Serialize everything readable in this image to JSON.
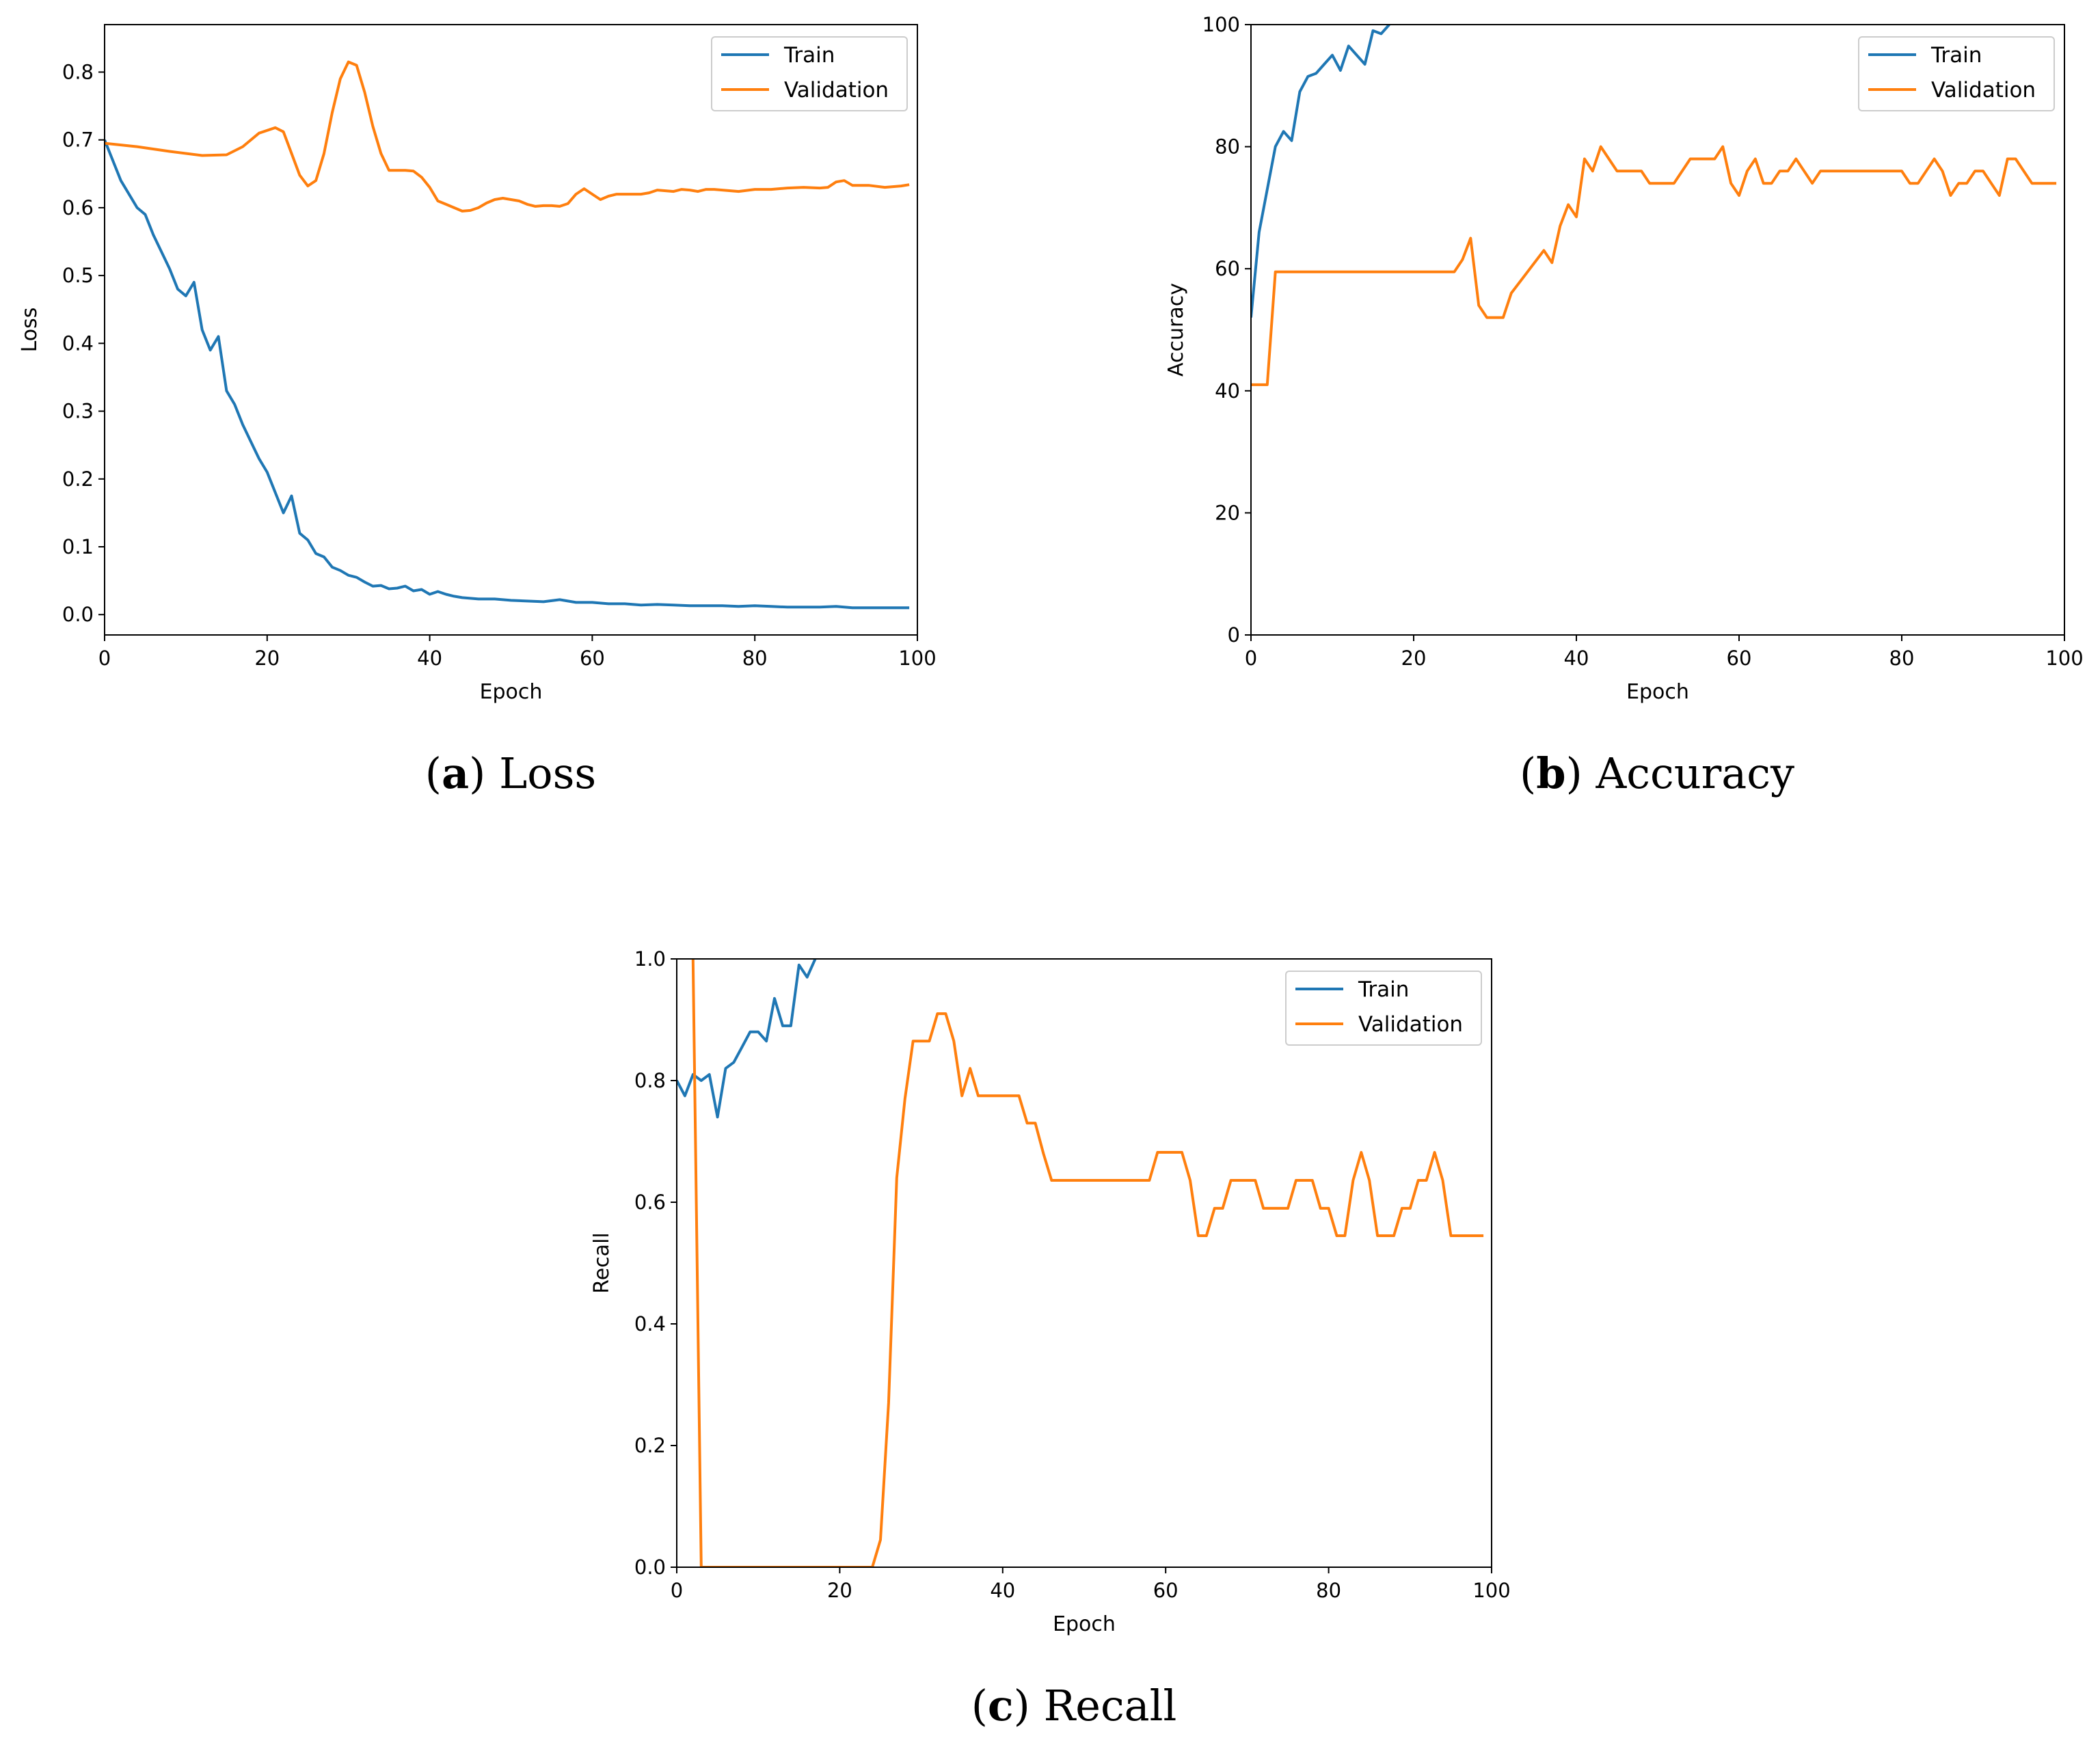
{
  "colors": {
    "train": "#1f77b4",
    "validation": "#ff7f0e",
    "axes": "#000000",
    "legend_border": "#cccccc"
  },
  "chart_data": [
    {
      "id": "loss",
      "type": "line",
      "caption": {
        "letter": "a",
        "text": "Loss"
      },
      "xlabel": "Epoch",
      "ylabel": "Loss",
      "xlim": [
        0,
        100
      ],
      "ylim": [
        -0.03,
        0.87
      ],
      "xticks": [
        0,
        20,
        40,
        60,
        80,
        100
      ],
      "yticks": [
        0.0,
        0.1,
        0.2,
        0.3,
        0.4,
        0.5,
        0.6,
        0.7,
        0.8
      ],
      "ytick_labels": [
        "0.0",
        "0.1",
        "0.2",
        "0.3",
        "0.4",
        "0.5",
        "0.6",
        "0.7",
        "0.8"
      ],
      "legend": [
        "Train",
        "Validation"
      ],
      "legend_position": "top-right",
      "series": [
        {
          "name": "Train",
          "color_key": "train",
          "x": [
            0,
            2,
            4,
            5,
            6,
            8,
            9,
            10,
            11,
            12,
            13,
            14,
            15,
            16,
            17,
            18,
            19,
            20,
            21,
            22,
            23,
            24,
            25,
            26,
            27,
            28,
            29,
            30,
            31,
            32,
            33,
            34,
            35,
            36,
            37,
            38,
            39,
            40,
            41,
            42,
            43,
            44,
            46,
            48,
            50,
            54,
            56,
            58,
            60,
            62,
            64,
            66,
            68,
            70,
            72,
            74,
            76,
            78,
            80,
            82,
            84,
            86,
            88,
            90,
            92,
            94,
            96,
            98,
            99
          ],
          "y": [
            0.7,
            0.64,
            0.6,
            0.59,
            0.56,
            0.51,
            0.48,
            0.47,
            0.49,
            0.42,
            0.39,
            0.41,
            0.33,
            0.31,
            0.28,
            0.255,
            0.23,
            0.21,
            0.18,
            0.15,
            0.175,
            0.12,
            0.11,
            0.09,
            0.085,
            0.07,
            0.065,
            0.058,
            0.055,
            0.048,
            0.042,
            0.043,
            0.038,
            0.039,
            0.042,
            0.035,
            0.037,
            0.03,
            0.034,
            0.03,
            0.027,
            0.025,
            0.023,
            0.023,
            0.021,
            0.019,
            0.022,
            0.018,
            0.018,
            0.016,
            0.016,
            0.014,
            0.015,
            0.014,
            0.013,
            0.013,
            0.013,
            0.012,
            0.013,
            0.012,
            0.011,
            0.011,
            0.011,
            0.012,
            0.01,
            0.01,
            0.01,
            0.01,
            0.01
          ]
        },
        {
          "name": "Validation",
          "color_key": "validation",
          "x": [
            0,
            4,
            8,
            12,
            15,
            17,
            19,
            21,
            22,
            23,
            24,
            25,
            26,
            27,
            28,
            29,
            30,
            31,
            32,
            33,
            34,
            35,
            36,
            37,
            38,
            39,
            40,
            41,
            42,
            43,
            44,
            45,
            46,
            47,
            48,
            49,
            50,
            51,
            52,
            53,
            54,
            55,
            56,
            57,
            58,
            59,
            60,
            61,
            62,
            63,
            64,
            66,
            67,
            68,
            69,
            70,
            71,
            72,
            73,
            74,
            75,
            76,
            78,
            80,
            82,
            84,
            86,
            88,
            89,
            90,
            91,
            92,
            94,
            96,
            98,
            99
          ],
          "y": [
            0.695,
            0.69,
            0.683,
            0.677,
            0.678,
            0.69,
            0.71,
            0.718,
            0.712,
            0.68,
            0.648,
            0.632,
            0.64,
            0.68,
            0.74,
            0.79,
            0.815,
            0.81,
            0.77,
            0.72,
            0.68,
            0.655,
            0.655,
            0.655,
            0.654,
            0.645,
            0.63,
            0.61,
            0.605,
            0.6,
            0.595,
            0.596,
            0.6,
            0.607,
            0.612,
            0.614,
            0.612,
            0.61,
            0.605,
            0.602,
            0.603,
            0.603,
            0.602,
            0.606,
            0.62,
            0.628,
            0.62,
            0.612,
            0.617,
            0.62,
            0.62,
            0.62,
            0.622,
            0.626,
            0.625,
            0.624,
            0.627,
            0.626,
            0.624,
            0.627,
            0.627,
            0.626,
            0.624,
            0.627,
            0.627,
            0.629,
            0.63,
            0.629,
            0.63,
            0.638,
            0.64,
            0.633,
            0.633,
            0.63,
            0.632,
            0.634
          ]
        }
      ]
    },
    {
      "id": "accuracy",
      "type": "line",
      "caption": {
        "letter": "b",
        "text": "Accuracy"
      },
      "xlabel": "Epoch",
      "ylabel": "Accuracy",
      "xlim": [
        0,
        100
      ],
      "ylim": [
        0,
        100
      ],
      "xticks": [
        0,
        20,
        40,
        60,
        80,
        100
      ],
      "yticks": [
        0,
        20,
        40,
        60,
        80,
        100
      ],
      "ytick_labels": [
        "0",
        "20",
        "40",
        "60",
        "80",
        "100"
      ],
      "legend": [
        "Train",
        "Validation"
      ],
      "legend_position": "top-right",
      "series": [
        {
          "name": "Train",
          "color_key": "train",
          "x": [
            0,
            1,
            2,
            3,
            4,
            5,
            6,
            7,
            8,
            9,
            10,
            11,
            12,
            13,
            14,
            15,
            16,
            17
          ],
          "y": [
            52,
            66,
            73,
            80,
            82.5,
            81,
            89,
            91.5,
            92,
            93.5,
            95,
            92.5,
            96.5,
            95,
            93.5,
            99,
            98.5,
            100
          ]
        },
        {
          "name": "Validation",
          "color_key": "validation",
          "x": [
            0,
            2,
            3,
            25,
            26,
            27,
            28,
            29,
            30,
            31,
            32,
            34,
            36,
            37,
            38,
            39,
            40,
            41,
            42,
            43,
            44,
            45,
            46,
            48,
            49,
            50,
            52,
            54,
            56,
            57,
            58,
            59,
            60,
            61,
            62,
            63,
            64,
            65,
            66,
            67,
            68,
            69,
            70,
            72,
            74,
            76,
            78,
            80,
            81,
            82,
            83,
            84,
            85,
            86,
            87,
            88,
            89,
            90,
            91,
            92,
            93,
            94,
            96,
            99
          ],
          "y": [
            41,
            41,
            59.5,
            59.5,
            61.5,
            65,
            54,
            52,
            52,
            52,
            56,
            59.5,
            63,
            61,
            67,
            70.5,
            68.5,
            78,
            76,
            80,
            78,
            76,
            76,
            76,
            74,
            74,
            74,
            78,
            78,
            78,
            80,
            74,
            72,
            76,
            78,
            74,
            74,
            76,
            76,
            78,
            76,
            74,
            76,
            76,
            76,
            76,
            76,
            76,
            74,
            74,
            76,
            78,
            76,
            72,
            74,
            74,
            76,
            76,
            74,
            72,
            78,
            78,
            74,
            74
          ]
        }
      ]
    },
    {
      "id": "recall",
      "type": "line",
      "caption": {
        "letter": "c",
        "text": "Recall"
      },
      "xlabel": "Epoch",
      "ylabel": "Recall",
      "xlim": [
        0,
        100
      ],
      "ylim": [
        0,
        1
      ],
      "xticks": [
        0,
        20,
        40,
        60,
        80,
        100
      ],
      "yticks": [
        0,
        0.2,
        0.4,
        0.6,
        0.8,
        1.0
      ],
      "ytick_labels": [
        "0.0",
        "0.2",
        "0.4",
        "0.6",
        "0.8",
        "1.0"
      ],
      "legend": [
        "Train",
        "Validation"
      ],
      "legend_position": "top-right",
      "series": [
        {
          "name": "Train",
          "color_key": "train",
          "x": [
            0,
            1,
            2,
            3,
            4,
            5,
            6,
            7,
            8,
            9,
            10,
            11,
            12,
            13,
            14,
            15,
            16,
            17
          ],
          "y": [
            0.8,
            0.775,
            0.81,
            0.8,
            0.81,
            0.74,
            0.82,
            0.83,
            0.855,
            0.88,
            0.88,
            0.865,
            0.935,
            0.89,
            0.89,
            0.99,
            0.97,
            1.0
          ],
          "clip": true
        },
        {
          "name": "Validation",
          "color_key": "validation",
          "x": [
            2,
            3,
            24,
            25,
            26,
            27,
            28,
            29,
            30,
            31,
            32,
            33,
            34,
            35,
            36,
            37,
            38,
            39,
            40,
            41,
            42,
            43,
            44,
            45,
            46,
            47,
            48,
            49,
            50,
            51,
            52,
            53,
            54,
            55,
            56,
            57,
            58,
            59,
            60,
            61,
            62,
            63,
            64,
            65,
            66,
            67,
            68,
            69,
            70,
            71,
            72,
            73,
            74,
            75,
            76,
            77,
            78,
            79,
            80,
            81,
            82,
            83,
            84,
            85,
            86,
            87,
            88,
            89,
            90,
            91,
            92,
            93,
            94,
            95,
            96,
            97,
            98,
            99
          ],
          "y": [
            1.0,
            0.0,
            0.0,
            0.045,
            0.27,
            0.64,
            0.77,
            0.865,
            0.865,
            0.865,
            0.91,
            0.91,
            0.865,
            0.775,
            0.82,
            0.775,
            0.775,
            0.775,
            0.775,
            0.775,
            0.775,
            0.73,
            0.73,
            0.68,
            0.636,
            0.636,
            0.636,
            0.636,
            0.636,
            0.636,
            0.636,
            0.636,
            0.636,
            0.636,
            0.636,
            0.636,
            0.636,
            0.682,
            0.682,
            0.682,
            0.682,
            0.636,
            0.545,
            0.545,
            0.59,
            0.59,
            0.636,
            0.636,
            0.636,
            0.636,
            0.59,
            0.59,
            0.59,
            0.59,
            0.636,
            0.636,
            0.636,
            0.59,
            0.59,
            0.545,
            0.545,
            0.636,
            0.682,
            0.636,
            0.545,
            0.545,
            0.545,
            0.59,
            0.59,
            0.636,
            0.636,
            0.682,
            0.636,
            0.545,
            0.545,
            0.545,
            0.545,
            0.545
          ]
        }
      ]
    }
  ]
}
